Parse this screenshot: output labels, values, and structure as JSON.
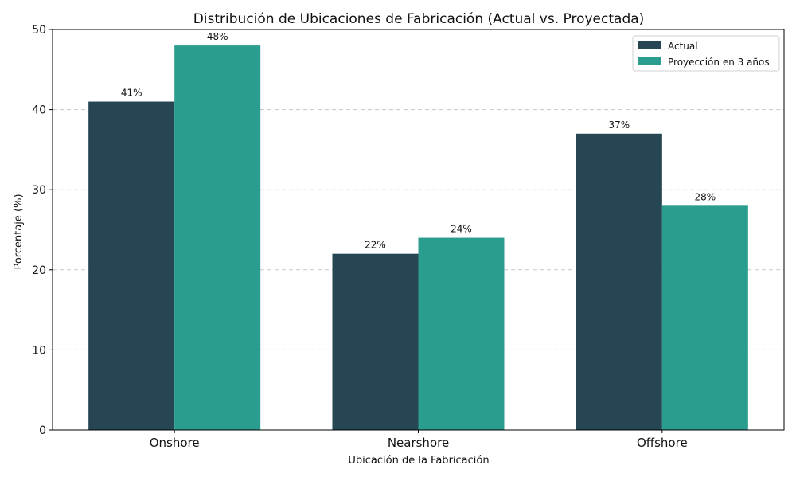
{
  "chart_data": {
    "type": "bar",
    "title": "Distribución de Ubicaciones de Fabricación (Actual vs. Proyectada)",
    "xlabel": "Ubicación de la Fabricación",
    "ylabel": "Porcentaje (%)",
    "categories": [
      "Onshore",
      "Nearshore",
      "Offshore"
    ],
    "series": [
      {
        "name": "Actual",
        "values": [
          41,
          22,
          37
        ],
        "color": "#264653"
      },
      {
        "name": "Proyección en 3 años",
        "values": [
          48,
          24,
          28
        ],
        "color": "#2a9d8f"
      }
    ],
    "ylim": [
      0,
      50
    ],
    "yticks": [
      0,
      10,
      20,
      30,
      40,
      50
    ],
    "value_suffix": "%",
    "grid": "y-dashed",
    "legend": "top-right"
  }
}
